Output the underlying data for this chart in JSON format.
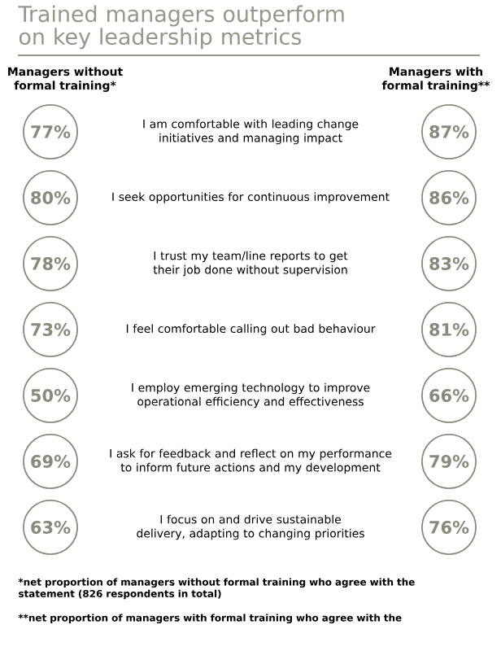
{
  "chart_data": {
    "type": "other",
    "title": "Trained managers outperform on key leadership metrics",
    "categories": [
      "I am comfortable with leading change initiatives and managing impact",
      "I seek opportunities for continuous improvement",
      "I trust my team/line reports to get their job done without supervision",
      "I feel comfortable calling out bad behaviour",
      "I employ emerging technology to improve operational efficiency and effectiveness",
      "I ask for feedback and reflect on my performance to inform future actions and my development",
      "I focus on and drive sustainable delivery, adapting to changing priorities"
    ],
    "series": [
      {
        "name": "Managers without formal training*",
        "color": "#8a8a7c",
        "values": [
          77,
          80,
          78,
          73,
          50,
          69,
          63
        ],
        "value_labels": [
          "77%",
          "80%",
          "78%",
          "73%",
          "50%",
          "69%",
          "63%"
        ]
      },
      {
        "name": "Managers with formal training**",
        "color": "#8a8a7c",
        "values": [
          87,
          86,
          83,
          81,
          66,
          79,
          76
        ],
        "value_labels": [
          "87%",
          "86%",
          "83%",
          "81%",
          "66%",
          "79%",
          "76%"
        ]
      }
    ],
    "annotations": [
      "*net proportion of managers without formal training who agree with the statement (826 respondents in total)",
      "**net proportion of managers with formal training who agree with the"
    ]
  }
}
